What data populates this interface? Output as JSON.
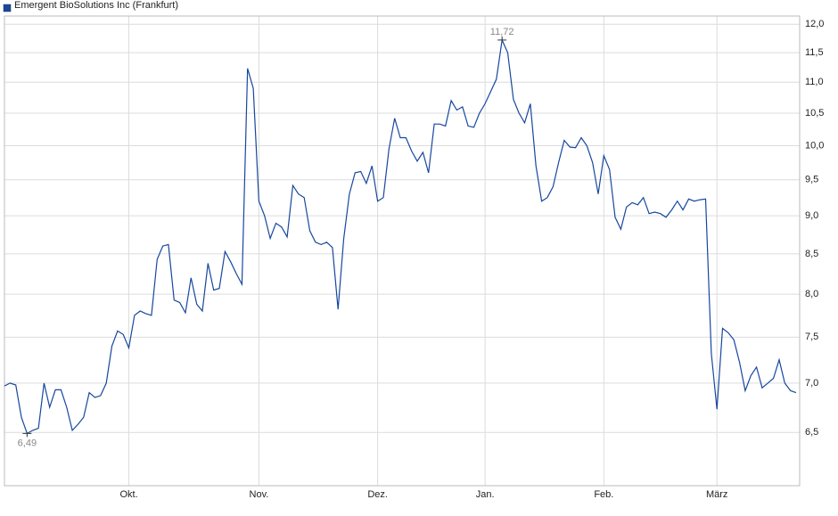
{
  "chart_data": {
    "type": "line",
    "log_scale": true,
    "grid": true,
    "categories": [
      null,
      null,
      null,
      null,
      null,
      null,
      null,
      null,
      null,
      null,
      null,
      null,
      null,
      null,
      null,
      null,
      null,
      null,
      null,
      null,
      null,
      null,
      "Okt.",
      null,
      null,
      null,
      null,
      null,
      null,
      null,
      null,
      null,
      null,
      null,
      null,
      null,
      null,
      null,
      null,
      null,
      null,
      null,
      null,
      null,
      null,
      "Nov.",
      null,
      null,
      null,
      null,
      null,
      null,
      null,
      null,
      null,
      null,
      null,
      null,
      null,
      null,
      null,
      null,
      null,
      null,
      null,
      null,
      "Dez.",
      null,
      null,
      null,
      null,
      null,
      null,
      null,
      null,
      null,
      null,
      null,
      null,
      null,
      null,
      null,
      null,
      null,
      null,
      "Jan.",
      null,
      null,
      null,
      null,
      null,
      null,
      null,
      null,
      null,
      null,
      null,
      null,
      null,
      null,
      null,
      null,
      null,
      null,
      null,
      null,
      "Feb.",
      null,
      null,
      null,
      null,
      null,
      null,
      null,
      null,
      null,
      null,
      null,
      null,
      null,
      null,
      null,
      null,
      null,
      null,
      null,
      "März",
      null,
      null,
      null,
      null,
      null,
      null,
      null,
      null,
      null,
      null,
      null,
      null,
      null,
      null
    ],
    "series": [
      {
        "name": "Emergent BioSolutions Inc (Frankfurt)",
        "color": "#17479e",
        "values": [
          6.97,
          7.0,
          6.98,
          6.65,
          6.49,
          6.52,
          6.54,
          7.0,
          6.75,
          6.93,
          6.93,
          6.75,
          6.52,
          6.58,
          6.65,
          6.9,
          6.85,
          6.87,
          7.0,
          7.4,
          7.57,
          7.53,
          7.38,
          7.75,
          7.8,
          7.77,
          7.75,
          8.43,
          8.6,
          8.62,
          7.93,
          7.9,
          7.78,
          8.2,
          7.88,
          7.8,
          8.38,
          8.05,
          8.07,
          8.53,
          8.4,
          8.25,
          8.12,
          11.23,
          10.9,
          9.2,
          9.0,
          8.7,
          8.9,
          8.85,
          8.72,
          9.42,
          9.3,
          9.25,
          8.8,
          8.65,
          8.62,
          8.65,
          8.58,
          7.82,
          8.7,
          9.3,
          9.6,
          9.62,
          9.45,
          9.7,
          9.2,
          9.25,
          9.95,
          10.42,
          10.12,
          10.12,
          9.92,
          9.77,
          9.9,
          9.6,
          10.33,
          10.33,
          10.3,
          10.7,
          10.55,
          10.6,
          10.3,
          10.28,
          10.5,
          10.65,
          10.85,
          11.05,
          11.72,
          11.5,
          10.72,
          10.5,
          10.35,
          10.65,
          9.7,
          9.2,
          9.25,
          9.4,
          9.75,
          10.08,
          9.98,
          9.97,
          10.12,
          10.0,
          9.75,
          9.3,
          9.85,
          9.65,
          8.98,
          8.82,
          9.12,
          9.18,
          9.15,
          9.25,
          9.03,
          9.05,
          9.03,
          8.98,
          9.08,
          9.2,
          9.08,
          9.23,
          9.2,
          9.22,
          9.23,
          7.32,
          6.73,
          7.6,
          7.55,
          7.47,
          7.22,
          6.92,
          7.08,
          7.17,
          6.95,
          7.0,
          7.05,
          7.25,
          7.0,
          6.92,
          6.9
        ],
        "value_labels": [
          null,
          null,
          null,
          null,
          "6,49",
          null,
          null,
          null,
          null,
          null,
          null,
          null,
          null,
          null,
          null,
          null,
          null,
          null,
          null,
          null,
          null,
          null,
          null,
          null,
          null,
          null,
          null,
          null,
          null,
          null,
          null,
          null,
          null,
          null,
          null,
          null,
          null,
          null,
          null,
          null,
          null,
          null,
          null,
          null,
          null,
          null,
          null,
          null,
          null,
          null,
          null,
          null,
          null,
          null,
          null,
          null,
          null,
          null,
          null,
          null,
          null,
          null,
          null,
          null,
          null,
          null,
          null,
          null,
          null,
          null,
          null,
          null,
          null,
          null,
          null,
          null,
          null,
          null,
          null,
          null,
          null,
          null,
          null,
          null,
          null,
          null,
          null,
          null,
          "11,72",
          null,
          null,
          null,
          null,
          null,
          null,
          null,
          null,
          null,
          null,
          null,
          null,
          null,
          null,
          null,
          null,
          null,
          null,
          null,
          null,
          null,
          null,
          null,
          null,
          null,
          null,
          null,
          null,
          null,
          null,
          null,
          null,
          null,
          null,
          null,
          null,
          null,
          null,
          null,
          null,
          null,
          null,
          null,
          null,
          null,
          null,
          null,
          null,
          null,
          null,
          null,
          null
        ]
      }
    ],
    "ylim": [
      6.0,
      12.15
    ],
    "yticks": [
      {
        "value": 6.5,
        "label": "6,5"
      },
      {
        "value": 7,
        "label": "7,0"
      },
      {
        "value": 7.5,
        "label": "7,5"
      },
      {
        "value": 8,
        "label": "8,0"
      },
      {
        "value": 8.5,
        "label": "8,5"
      },
      {
        "value": 9,
        "label": "9,0"
      },
      {
        "value": 9.5,
        "label": "9,5"
      },
      {
        "value": 10,
        "label": "10,0"
      },
      {
        "value": 10.5,
        "label": "10,5"
      },
      {
        "value": 11,
        "label": "11,0"
      },
      {
        "value": 11.5,
        "label": "11,5"
      },
      {
        "value": 12,
        "label": "12,0"
      }
    ]
  }
}
